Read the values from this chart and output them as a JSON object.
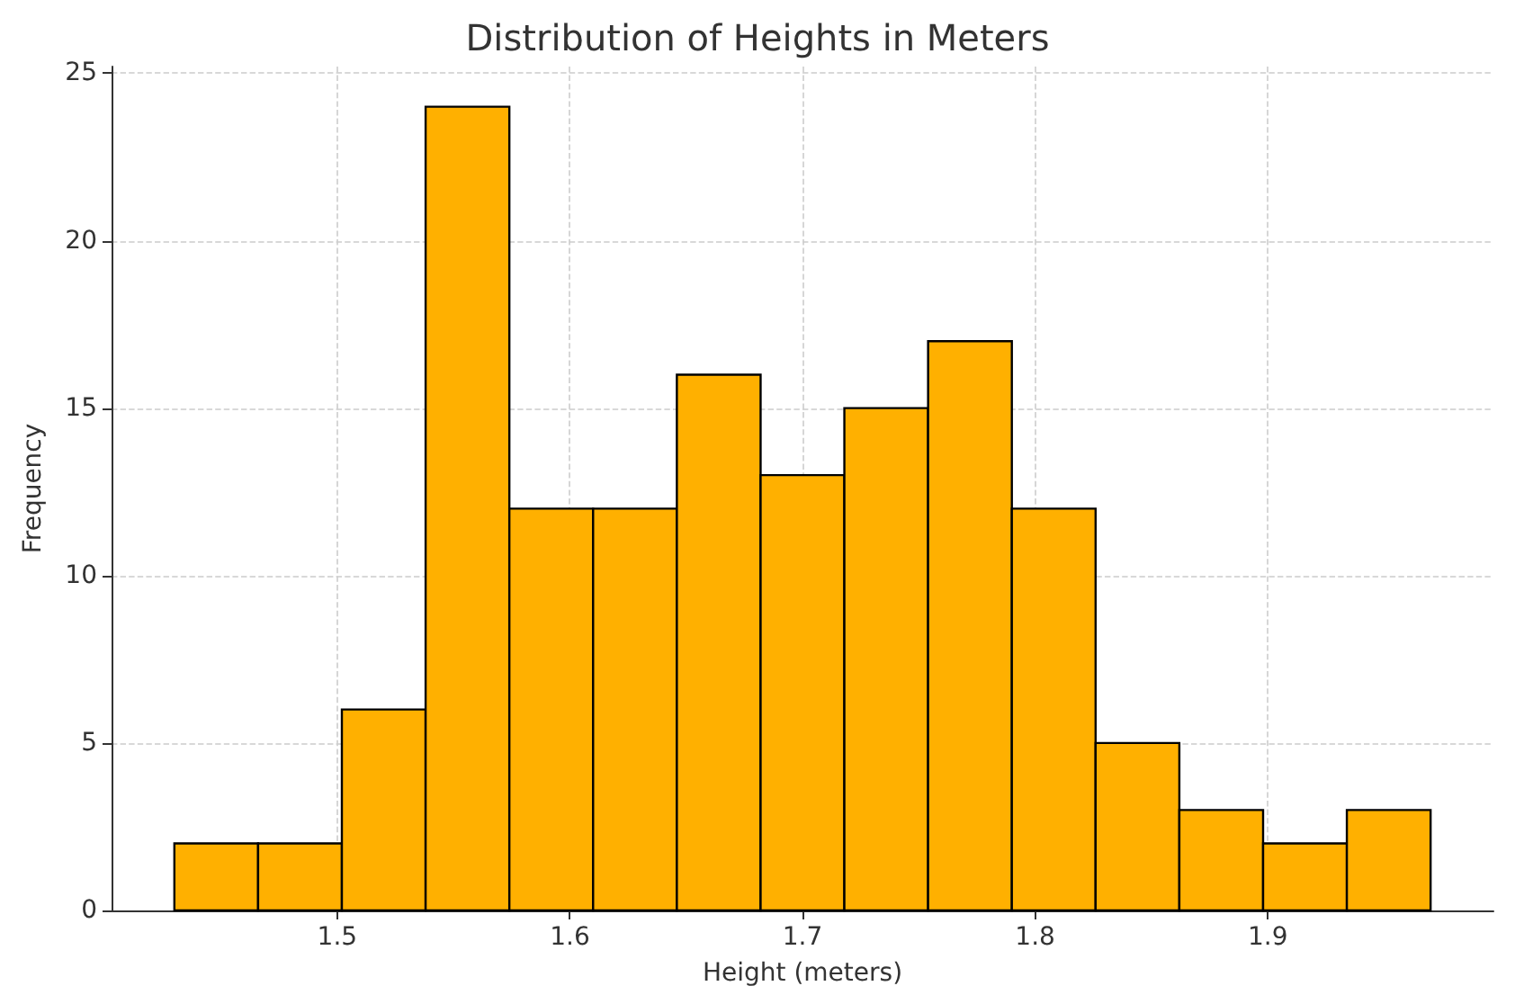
{
  "chart_data": {
    "type": "histogram",
    "title": "Distribution of Heights in Meters",
    "xlabel": "Height (meters)",
    "ylabel": "Frequency",
    "bins": [
      1.43,
      1.466,
      1.502,
      1.538,
      1.574,
      1.61,
      1.646,
      1.682,
      1.718,
      1.754,
      1.79,
      1.826,
      1.862,
      1.898,
      1.934,
      1.97
    ],
    "values": [
      2,
      2,
      6,
      24,
      12,
      12,
      16,
      13,
      15,
      17,
      12,
      5,
      3,
      2,
      3
    ],
    "color": "#ffb000",
    "xlim": [
      1.403,
      1.997
    ],
    "xticks": [
      1.5,
      1.6,
      1.7,
      1.8,
      1.9
    ],
    "ylim": [
      0,
      25.2
    ],
    "yticks": [
      0,
      5,
      10,
      15,
      20,
      25
    ],
    "grid": true
  }
}
